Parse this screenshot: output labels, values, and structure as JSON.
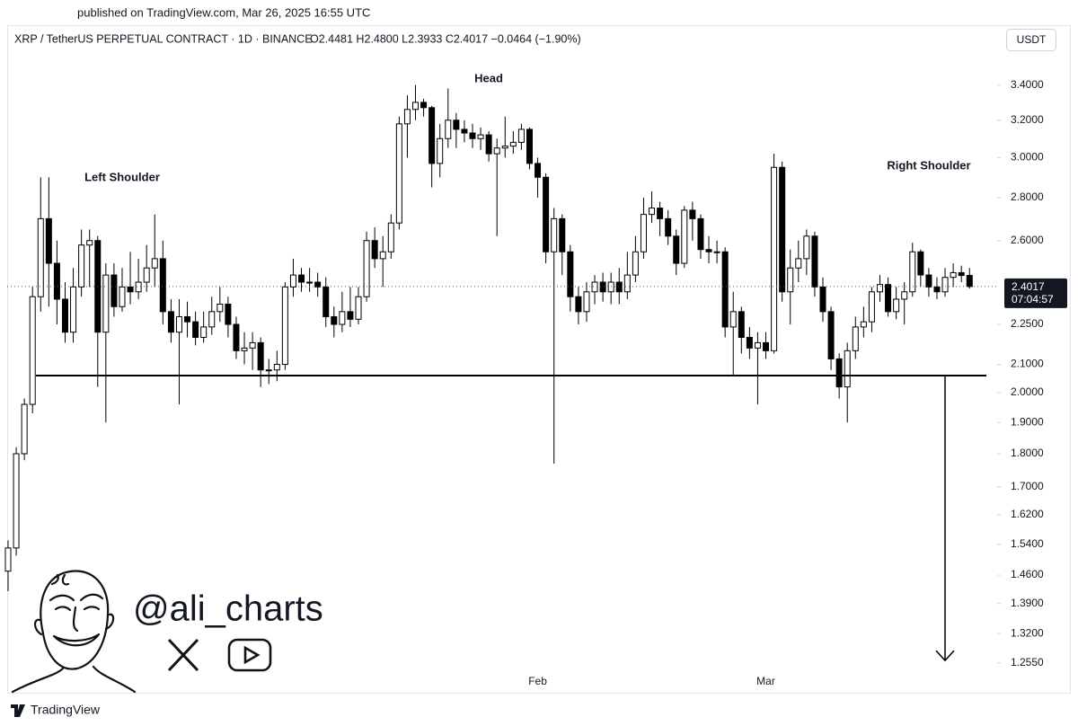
{
  "chart_data": {
    "type": "candlestick",
    "published": "published on TradingView.com, Mar 26, 2025 16:55 UTC",
    "title": "XRP / TetherUS PERPETUAL CONTRACT · 1D · BINANCE",
    "ohlc_legend": "O2.4481  H2.4800  L2.3933  C2.4017  −0.0464 (−1.90%)",
    "currency": "USDT",
    "countdown": "07:04:57",
    "annotations": [
      "Left Shoulder",
      "Head",
      "Right Shoulder"
    ],
    "watermark": "@ali_charts",
    "footer": "TradingView",
    "log": true,
    "up_color": "#ffffff",
    "down_color": "#000000",
    "ylim": [
      1.19,
      3.77
    ],
    "yticks": [
      {
        "value": 3.4,
        "label": "3.4000"
      },
      {
        "value": 3.2,
        "label": "3.2000"
      },
      {
        "value": 3.0,
        "label": "3.0000"
      },
      {
        "value": 2.8,
        "label": "2.8000"
      },
      {
        "value": 2.6,
        "label": "2.6000"
      },
      {
        "value": 2.25,
        "label": "2.2500"
      },
      {
        "value": 2.1,
        "label": "2.1000"
      },
      {
        "value": 2.0,
        "label": "2.0000"
      },
      {
        "value": 1.9,
        "label": "1.9000"
      },
      {
        "value": 1.8,
        "label": "1.8000"
      },
      {
        "value": 1.7,
        "label": "1.7000"
      },
      {
        "value": 1.62,
        "label": "1.6200"
      },
      {
        "value": 1.54,
        "label": "1.5400"
      },
      {
        "value": 1.46,
        "label": "1.4600"
      },
      {
        "value": 1.39,
        "label": "1.3900"
      },
      {
        "value": 1.32,
        "label": "1.3200"
      },
      {
        "value": 1.255,
        "label": "1.2550"
      }
    ],
    "support_level": 2.06,
    "target_level": 1.26,
    "categories": [
      null,
      null,
      null,
      null,
      null,
      null,
      null,
      null,
      null,
      null,
      null,
      null,
      null,
      null,
      null,
      null,
      null,
      null,
      null,
      null,
      null,
      null,
      null,
      null,
      null,
      null,
      null,
      null,
      null,
      null,
      null,
      null,
      null,
      null,
      null,
      null,
      null,
      null,
      null,
      null,
      null,
      null,
      null,
      null,
      null,
      null,
      null,
      null,
      null,
      null,
      null,
      null,
      null,
      null,
      null,
      null,
      null,
      null,
      null,
      null,
      null,
      null,
      null,
      null,
      null,
      "Feb",
      null,
      null,
      null,
      null,
      null,
      null,
      null,
      null,
      null,
      null,
      null,
      null,
      null,
      null,
      null,
      null,
      null,
      null,
      null,
      null,
      null,
      null,
      null,
      null,
      null,
      null,
      null,
      "Mar",
      null,
      null,
      null,
      null,
      null,
      null,
      null,
      null,
      null,
      null,
      null,
      null,
      null,
      null,
      null,
      null,
      null,
      null,
      null,
      null,
      null,
      null,
      null,
      null,
      null
    ],
    "open": [
      1.47,
      1.53,
      1.8,
      1.96,
      2.36,
      2.7,
      2.5,
      2.35,
      2.22,
      2.4,
      2.58,
      2.6,
      2.22,
      2.45,
      2.32,
      2.4,
      2.38,
      2.42,
      2.48,
      2.52,
      2.3,
      2.22,
      2.28,
      2.26,
      2.2,
      2.24,
      2.3,
      2.33,
      2.25,
      2.15,
      2.16,
      2.18,
      2.08,
      2.08,
      2.1,
      2.4,
      2.45,
      2.42,
      2.42,
      2.4,
      2.28,
      2.25,
      2.3,
      2.27,
      2.36,
      2.6,
      2.52,
      2.55,
      2.68,
      3.18,
      3.26,
      3.3,
      3.27,
      2.97,
      3.1,
      3.2,
      3.15,
      3.13,
      3.1,
      3.12,
      3.02,
      3.05,
      3.06,
      3.08,
      3.15,
      2.97,
      2.9,
      2.55,
      2.7,
      2.55,
      2.36,
      2.3,
      2.38,
      2.42,
      2.38,
      2.42,
      2.38,
      2.45,
      2.55,
      2.72,
      2.75,
      2.7,
      2.62,
      2.5,
      2.74,
      2.7,
      2.56,
      2.55,
      2.55,
      2.24,
      2.3,
      2.2,
      2.16,
      2.18,
      2.15,
      2.95,
      2.38,
      2.48,
      2.52,
      2.62,
      2.4,
      2.3,
      2.12,
      2.02,
      2.15,
      2.24,
      2.26,
      2.38,
      2.41,
      2.3,
      2.35,
      2.38,
      2.55,
      2.45,
      2.4,
      2.38,
      2.44,
      2.46,
      2.4481
    ],
    "high": [
      1.55,
      1.82,
      1.98,
      2.4,
      2.9,
      2.9,
      2.6,
      2.42,
      2.48,
      2.65,
      2.65,
      2.62,
      2.5,
      2.5,
      2.48,
      2.55,
      2.52,
      2.58,
      2.72,
      2.6,
      2.35,
      2.35,
      2.34,
      2.3,
      2.3,
      2.36,
      2.4,
      2.36,
      2.28,
      2.22,
      2.22,
      2.2,
      2.12,
      2.15,
      2.42,
      2.52,
      2.48,
      2.48,
      2.46,
      2.44,
      2.32,
      2.38,
      2.4,
      2.4,
      2.64,
      2.66,
      2.62,
      2.72,
      3.22,
      3.34,
      3.4,
      3.32,
      3.28,
      3.18,
      3.38,
      3.24,
      3.2,
      3.18,
      3.16,
      3.14,
      3.1,
      3.22,
      3.14,
      3.18,
      3.16,
      3.0,
      2.92,
      2.75,
      2.72,
      2.58,
      2.4,
      2.42,
      2.45,
      2.46,
      2.46,
      2.48,
      2.55,
      2.62,
      2.8,
      2.83,
      2.78,
      2.74,
      2.65,
      2.76,
      2.78,
      2.72,
      2.62,
      2.6,
      2.57,
      2.38,
      2.32,
      2.24,
      2.22,
      2.22,
      3.02,
      2.98,
      2.56,
      2.6,
      2.65,
      2.64,
      2.44,
      2.32,
      2.14,
      2.18,
      2.28,
      2.32,
      2.4,
      2.45,
      2.44,
      2.4,
      2.42,
      2.59,
      2.56,
      2.48,
      2.44,
      2.48,
      2.5,
      2.49,
      2.48
    ],
    "low": [
      1.42,
      1.51,
      1.78,
      1.93,
      2.3,
      2.32,
      2.25,
      2.18,
      2.18,
      2.36,
      2.4,
      2.02,
      1.9,
      2.28,
      2.3,
      2.33,
      2.35,
      2.38,
      2.4,
      2.25,
      2.18,
      1.96,
      2.2,
      2.17,
      2.18,
      2.21,
      2.26,
      2.2,
      2.12,
      2.1,
      2.08,
      2.02,
      2.03,
      2.04,
      2.08,
      2.36,
      2.38,
      2.38,
      2.36,
      2.24,
      2.2,
      2.22,
      2.24,
      2.25,
      2.34,
      2.48,
      2.4,
      2.52,
      2.65,
      3.0,
      3.2,
      3.22,
      2.85,
      2.9,
      3.05,
      3.05,
      3.08,
      3.05,
      3.04,
      2.98,
      2.62,
      3.0,
      3.02,
      3.04,
      2.94,
      2.8,
      2.5,
      1.77,
      2.45,
      2.3,
      2.25,
      2.26,
      2.33,
      2.34,
      2.33,
      2.33,
      2.35,
      2.42,
      2.52,
      2.68,
      2.62,
      2.58,
      2.45,
      2.48,
      2.6,
      2.52,
      2.5,
      2.5,
      2.2,
      2.06,
      2.14,
      2.12,
      1.96,
      2.12,
      2.14,
      2.34,
      2.25,
      2.42,
      2.45,
      2.36,
      2.26,
      2.08,
      1.98,
      1.9,
      2.12,
      2.2,
      2.22,
      2.34,
      2.28,
      2.27,
      2.25,
      2.36,
      2.4,
      2.36,
      2.35,
      2.36,
      2.4,
      2.42,
      2.3933
    ],
    "close": [
      1.53,
      1.8,
      1.96,
      2.36,
      2.7,
      2.5,
      2.35,
      2.22,
      2.4,
      2.58,
      2.6,
      2.22,
      2.45,
      2.32,
      2.4,
      2.38,
      2.42,
      2.48,
      2.52,
      2.3,
      2.22,
      2.28,
      2.26,
      2.2,
      2.24,
      2.3,
      2.33,
      2.25,
      2.15,
      2.16,
      2.18,
      2.08,
      2.08,
      2.1,
      2.4,
      2.45,
      2.42,
      2.42,
      2.4,
      2.28,
      2.25,
      2.3,
      2.27,
      2.36,
      2.6,
      2.52,
      2.55,
      2.68,
      3.18,
      3.26,
      3.3,
      3.27,
      2.97,
      3.1,
      3.2,
      3.15,
      3.13,
      3.1,
      3.12,
      3.02,
      3.05,
      3.06,
      3.08,
      3.15,
      2.97,
      2.9,
      2.55,
      2.7,
      2.55,
      2.36,
      2.3,
      2.38,
      2.42,
      2.38,
      2.42,
      2.38,
      2.45,
      2.55,
      2.72,
      2.75,
      2.7,
      2.62,
      2.5,
      2.74,
      2.7,
      2.56,
      2.55,
      2.55,
      2.24,
      2.3,
      2.2,
      2.16,
      2.18,
      2.15,
      2.95,
      2.38,
      2.48,
      2.52,
      2.62,
      2.4,
      2.3,
      2.12,
      2.02,
      2.15,
      2.24,
      2.26,
      2.38,
      2.41,
      2.3,
      2.35,
      2.38,
      2.55,
      2.45,
      2.4,
      2.38,
      2.44,
      2.46,
      2.4481,
      2.4017
    ]
  }
}
